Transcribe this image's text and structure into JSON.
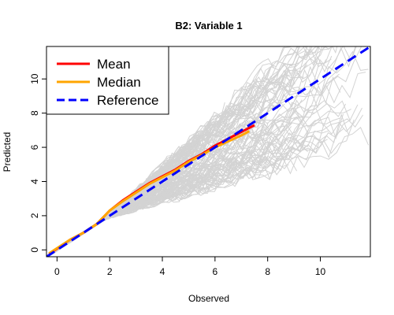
{
  "chart_data": {
    "type": "line",
    "title": "B2: Variable 1",
    "xlabel": "Observed",
    "ylabel": "Predicted",
    "xlim": [
      -0.4,
      11.9
    ],
    "ylim": [
      -0.4,
      11.9
    ],
    "xticks": [
      0,
      2,
      4,
      6,
      8,
      10
    ],
    "yticks": [
      0,
      2,
      4,
      6,
      8,
      10
    ],
    "grid": false,
    "legend_position": "top-left",
    "series": [
      {
        "name": "Mean",
        "color": "#ff0000",
        "style": "solid",
        "x": [
          -0.3,
          0.5,
          1.0,
          1.5,
          2.0,
          2.5,
          3.0,
          3.5,
          4.0,
          4.5,
          5.0,
          5.5,
          6.0,
          6.5,
          7.0,
          7.5
        ],
        "y": [
          -0.25,
          0.6,
          1.0,
          1.5,
          2.3,
          2.9,
          3.4,
          3.9,
          4.3,
          4.7,
          5.2,
          5.6,
          6.1,
          6.5,
          6.9,
          7.3
        ]
      },
      {
        "name": "Median",
        "color": "#ffa500",
        "style": "solid",
        "x": [
          -0.3,
          0.5,
          1.0,
          1.5,
          2.0,
          2.5,
          3.0,
          3.5,
          4.0,
          4.5,
          5.0,
          5.5,
          6.0,
          6.5,
          7.0,
          7.3
        ],
        "y": [
          -0.2,
          0.6,
          1.0,
          1.5,
          2.3,
          2.85,
          3.35,
          3.85,
          4.25,
          4.65,
          5.15,
          5.55,
          6.0,
          6.35,
          6.7,
          6.95
        ]
      },
      {
        "name": "Reference",
        "color": "#0000ff",
        "style": "dashed",
        "x": [
          -0.4,
          11.9
        ],
        "y": [
          -0.4,
          11.9
        ]
      }
    ],
    "background_lines": {
      "color": "#d3d3d3",
      "count": 140
    }
  }
}
